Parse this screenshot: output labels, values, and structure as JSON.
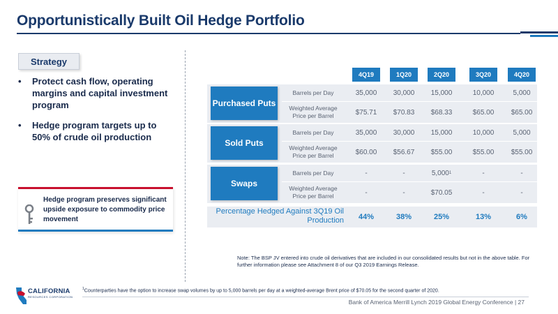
{
  "title": "Opportunistically Built Oil Hedge Portfolio",
  "strategy": {
    "tab": "Strategy",
    "bullets": [
      "Protect cash flow, operating margins and capital investment program",
      "Hedge program targets up to 50% of crude oil production"
    ],
    "bullet_glyph": "•"
  },
  "callout": {
    "text": "Hedge program preserves significant upside exposure to commodity price movement",
    "icon": "key-icon"
  },
  "table": {
    "quarters": [
      "4Q19",
      "1Q20",
      "2Q20",
      "3Q20",
      "4Q20"
    ],
    "row_labels": {
      "volume": "Barrels per Day",
      "price": "Weighted Average Price per Barrel"
    },
    "groups": [
      {
        "name": "Purchased Puts",
        "volume": [
          "35,000",
          "30,000",
          "15,000",
          "10,000",
          "5,000"
        ],
        "price": [
          "$75.71",
          "$70.83",
          "$68.33",
          "$65.00",
          "$65.00"
        ]
      },
      {
        "name": "Sold Puts",
        "volume": [
          "35,000",
          "30,000",
          "15,000",
          "10,000",
          "5,000"
        ],
        "price": [
          "$60.00",
          "$56.67",
          "$55.00",
          "$55.00",
          "$55.00"
        ]
      },
      {
        "name": "Swaps",
        "volume": [
          "-",
          "-",
          "5,000",
          "-",
          "-"
        ],
        "volume_footnote": "1",
        "price": [
          "-",
          "-",
          "$70.05",
          "-",
          "-"
        ]
      }
    ],
    "percentage": {
      "label": "Percentage Hedged Against 3Q19 Oil Production",
      "values": [
        "44%",
        "38%",
        "25%",
        "13%",
        "6%"
      ]
    }
  },
  "note": "Note: The BSP JV entered into crude oil derivatives that are included in our consolidated results but not in the above table. For further information please see Attachment 8 of our Q3 2019 Earnings Release.",
  "footnote": {
    "marker": "1",
    "text": "Counterparties have the option to increase swap volumes by up to 5,000 barrels per day at a weighted-average Brent price of $70.05 for the second quarter of 2020."
  },
  "logo": {
    "name": "CALIFORNIA",
    "sub": "RESOURCES CORPORATION"
  },
  "footer": "Bank of America Merrill Lynch 2019 Global Energy Conference | 27",
  "colors": {
    "navy": "#1a3a6b",
    "blue": "#1f7bbf",
    "red": "#c8102e",
    "panel": "#eaedf2"
  }
}
